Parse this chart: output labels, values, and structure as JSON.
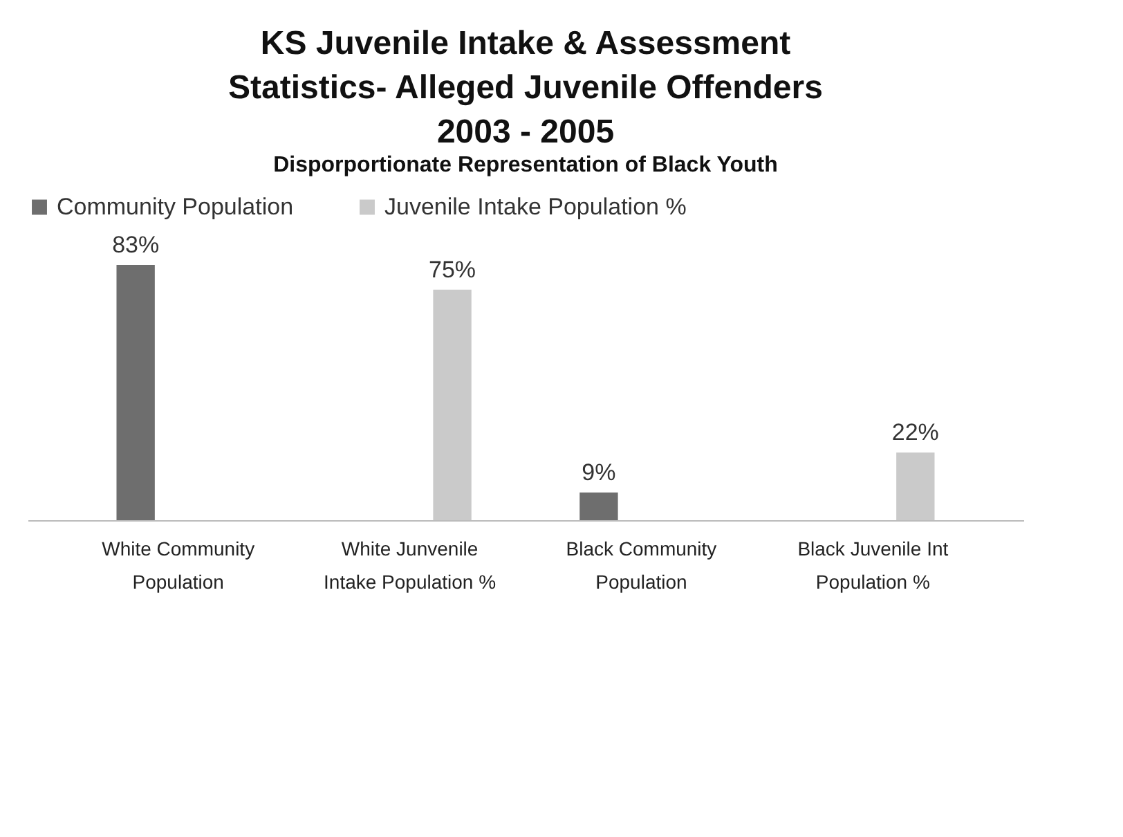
{
  "chart_data": {
    "type": "bar",
    "title": "KS Juvenile Intake & Assessment Statistics- Alleged Juvenile Offenders 2003 - 2005",
    "subtitle": "Disporportionate Representation of Black Youth",
    "categories": [
      "White Community Population",
      "White Junvenile Intake Population %",
      "Black Community Population",
      "Black Juvenile Int Population %"
    ],
    "series": [
      {
        "name": "Community  Population",
        "color": "#6e6e6e",
        "values": [
          83,
          null,
          9,
          null
        ],
        "value_labels": [
          "83%",
          null,
          "9%",
          null
        ]
      },
      {
        "name": "Juvenile Intake Population %",
        "color": "#cacaca",
        "values": [
          null,
          75,
          null,
          22
        ],
        "value_labels": [
          null,
          "75%",
          null,
          "22%"
        ]
      }
    ],
    "legend": "top"
  }
}
